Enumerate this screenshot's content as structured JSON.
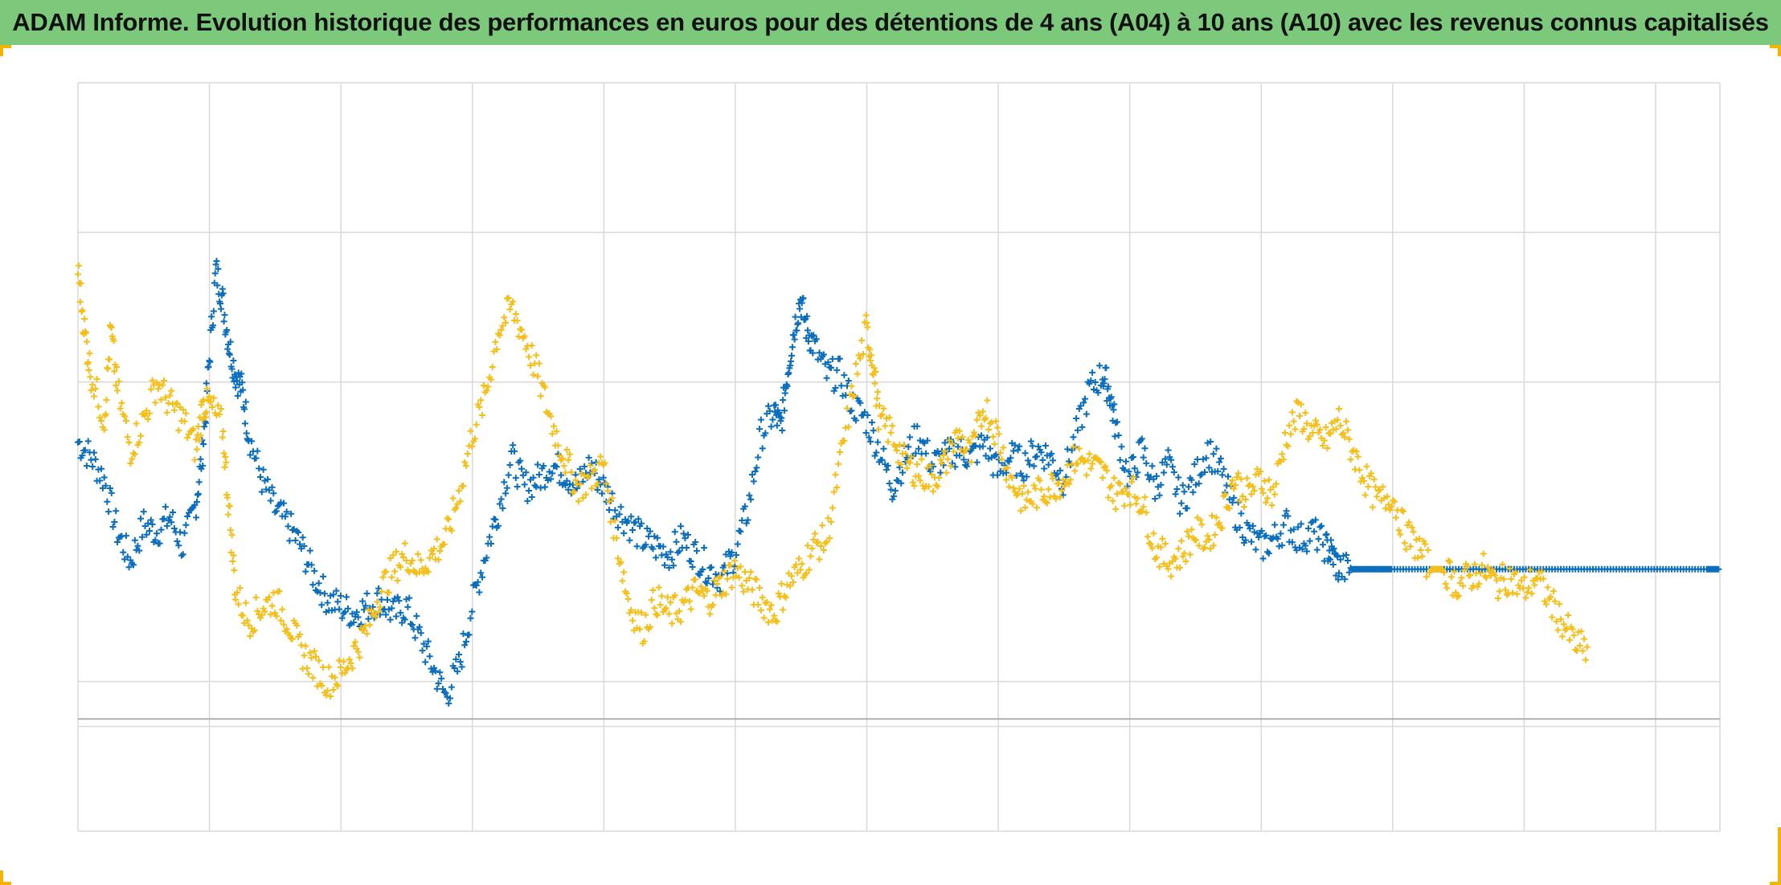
{
  "title": "ADAM Informe. Evolution historique des performances en euros pour des détentions de 4 ans (A04) à 10 ans (A10) avec les revenus connus capitalisés",
  "colors": {
    "title_bar": "#7dc97b",
    "series_blue": "#0a6ebd",
    "series_yellow": "#f5be18",
    "grid": "#d9d9d9",
    "zero_line": "#b0b0b0",
    "corner_accent": "#f2b400"
  },
  "chart_data": {
    "type": "scatter",
    "marker": "plus",
    "title": "ADAM Informe. Evolution historique des performances en euros pour des détentions de 4 ans (A04) à 10 ans (A10) avec les revenus connus capitalisés",
    "xlabel": "",
    "ylabel": "",
    "x_range": [
      0,
      12.5
    ],
    "y_range": [
      -0.75,
      4.25
    ],
    "x_gridlines": 13,
    "y_gridlines": [
      -0.75,
      -0.05,
      0.25,
      2.25,
      3.25,
      4.25
    ],
    "zero_line": 0,
    "tick_labels_visible": false,
    "legend": "none",
    "grid": true,
    "series": [
      {
        "color": "#0a6ebd",
        "points": [
          [
            0.0,
            1.85
          ],
          [
            0.1,
            1.75
          ],
          [
            0.2,
            1.6
          ],
          [
            0.3,
            1.25
          ],
          [
            0.4,
            1.05
          ],
          [
            0.5,
            1.3
          ],
          [
            0.6,
            1.25
          ],
          [
            0.7,
            1.35
          ],
          [
            0.8,
            1.15
          ],
          [
            0.9,
            1.45
          ],
          [
            0.95,
            1.8
          ],
          [
            1.0,
            2.4
          ],
          [
            1.05,
            3.0
          ],
          [
            1.1,
            2.8
          ],
          [
            1.15,
            2.5
          ],
          [
            1.2,
            2.3
          ],
          [
            1.25,
            2.2
          ],
          [
            1.3,
            1.9
          ],
          [
            1.4,
            1.6
          ],
          [
            1.5,
            1.4
          ],
          [
            1.6,
            1.3
          ],
          [
            1.7,
            1.15
          ],
          [
            1.8,
            0.95
          ],
          [
            1.9,
            0.8
          ],
          [
            2.0,
            0.75
          ],
          [
            2.1,
            0.7
          ],
          [
            2.2,
            0.75
          ],
          [
            2.3,
            0.8
          ],
          [
            2.4,
            0.7
          ],
          [
            2.5,
            0.75
          ],
          [
            2.6,
            0.55
          ],
          [
            2.7,
            0.35
          ],
          [
            2.8,
            0.15
          ],
          [
            2.9,
            0.35
          ],
          [
            3.0,
            0.75
          ],
          [
            3.1,
            1.1
          ],
          [
            3.2,
            1.4
          ],
          [
            3.3,
            1.75
          ],
          [
            3.4,
            1.55
          ],
          [
            3.5,
            1.6
          ],
          [
            3.6,
            1.7
          ],
          [
            3.7,
            1.65
          ],
          [
            3.8,
            1.55
          ],
          [
            3.9,
            1.7
          ],
          [
            4.0,
            1.55
          ],
          [
            4.1,
            1.4
          ],
          [
            4.2,
            1.3
          ],
          [
            4.3,
            1.2
          ],
          [
            4.4,
            1.15
          ],
          [
            4.5,
            1.1
          ],
          [
            4.6,
            1.2
          ],
          [
            4.7,
            1.1
          ],
          [
            4.8,
            1.0
          ],
          [
            4.9,
            0.95
          ],
          [
            5.0,
            1.1
          ],
          [
            5.1,
            1.4
          ],
          [
            5.2,
            1.9
          ],
          [
            5.3,
            2.05
          ],
          [
            5.35,
            1.95
          ],
          [
            5.4,
            2.3
          ],
          [
            5.45,
            2.6
          ],
          [
            5.5,
            2.8
          ],
          [
            5.55,
            2.6
          ],
          [
            5.6,
            2.5
          ],
          [
            5.7,
            2.3
          ],
          [
            5.8,
            2.3
          ],
          [
            5.9,
            2.1
          ],
          [
            6.0,
            2.0
          ],
          [
            6.1,
            1.8
          ],
          [
            6.2,
            1.55
          ],
          [
            6.3,
            1.75
          ],
          [
            6.4,
            1.9
          ],
          [
            6.5,
            1.7
          ],
          [
            6.6,
            1.75
          ],
          [
            6.7,
            1.8
          ],
          [
            6.8,
            1.75
          ],
          [
            6.9,
            1.85
          ],
          [
            7.0,
            1.65
          ],
          [
            7.1,
            1.75
          ],
          [
            7.2,
            1.7
          ],
          [
            7.3,
            1.8
          ],
          [
            7.4,
            1.75
          ],
          [
            7.5,
            1.6
          ],
          [
            7.6,
            1.9
          ],
          [
            7.7,
            2.2
          ],
          [
            7.8,
            2.3
          ],
          [
            7.85,
            2.2
          ],
          [
            7.9,
            1.95
          ],
          [
            8.0,
            1.6
          ],
          [
            8.1,
            1.8
          ],
          [
            8.2,
            1.55
          ],
          [
            8.3,
            1.7
          ],
          [
            8.4,
            1.45
          ],
          [
            8.5,
            1.6
          ],
          [
            8.6,
            1.8
          ],
          [
            8.7,
            1.65
          ],
          [
            8.8,
            1.4
          ],
          [
            8.9,
            1.25
          ],
          [
            9.0,
            1.15
          ],
          [
            9.1,
            1.2
          ],
          [
            9.2,
            1.3
          ],
          [
            9.3,
            1.2
          ],
          [
            9.4,
            1.25
          ],
          [
            9.5,
            1.15
          ],
          [
            9.55,
            1.1
          ],
          [
            9.6,
            1.0
          ],
          [
            9.7,
            1.0
          ],
          [
            9.8,
            1.0
          ],
          [
            9.9,
            1.0
          ],
          [
            10.0,
            1.0
          ],
          [
            10.2,
            1.0
          ],
          [
            10.4,
            1.0
          ],
          [
            10.6,
            1.0
          ],
          [
            10.8,
            1.0
          ],
          [
            11.0,
            1.0
          ],
          [
            11.2,
            1.0
          ],
          [
            11.4,
            1.0
          ],
          [
            11.6,
            1.0
          ],
          [
            11.8,
            1.0
          ],
          [
            12.0,
            1.0
          ],
          [
            12.2,
            1.0
          ],
          [
            12.4,
            1.0
          ],
          [
            12.5,
            1.0
          ]
        ]
      },
      {
        "color": "#f5be18",
        "points": [
          [
            0.0,
            3.0
          ],
          [
            0.05,
            2.6
          ],
          [
            0.1,
            2.3
          ],
          [
            0.2,
            2.0
          ],
          [
            0.25,
            2.6
          ],
          [
            0.3,
            2.2
          ],
          [
            0.4,
            1.8
          ],
          [
            0.5,
            2.0
          ],
          [
            0.6,
            2.25
          ],
          [
            0.7,
            2.1
          ],
          [
            0.8,
            2.0
          ],
          [
            0.9,
            1.8
          ],
          [
            0.95,
            2.1
          ],
          [
            1.0,
            2.1
          ],
          [
            1.1,
            1.95
          ],
          [
            1.15,
            1.4
          ],
          [
            1.2,
            0.85
          ],
          [
            1.3,
            0.65
          ],
          [
            1.4,
            0.75
          ],
          [
            1.5,
            0.8
          ],
          [
            1.6,
            0.65
          ],
          [
            1.7,
            0.45
          ],
          [
            1.8,
            0.35
          ],
          [
            1.9,
            0.25
          ],
          [
            2.0,
            0.3
          ],
          [
            2.1,
            0.45
          ],
          [
            2.2,
            0.6
          ],
          [
            2.3,
            0.85
          ],
          [
            2.4,
            1.0
          ],
          [
            2.5,
            1.1
          ],
          [
            2.6,
            1.0
          ],
          [
            2.7,
            1.1
          ],
          [
            2.8,
            1.2
          ],
          [
            2.9,
            1.5
          ],
          [
            3.0,
            1.9
          ],
          [
            3.1,
            2.15
          ],
          [
            3.2,
            2.6
          ],
          [
            3.3,
            2.75
          ],
          [
            3.4,
            2.55
          ],
          [
            3.5,
            2.3
          ],
          [
            3.6,
            2.0
          ],
          [
            3.7,
            1.75
          ],
          [
            3.8,
            1.55
          ],
          [
            3.9,
            1.6
          ],
          [
            4.0,
            1.7
          ],
          [
            4.1,
            1.2
          ],
          [
            4.2,
            0.75
          ],
          [
            4.3,
            0.6
          ],
          [
            4.4,
            0.8
          ],
          [
            4.5,
            0.7
          ],
          [
            4.6,
            0.75
          ],
          [
            4.7,
            0.85
          ],
          [
            4.8,
            0.8
          ],
          [
            4.9,
            0.9
          ],
          [
            5.0,
            1.0
          ],
          [
            5.1,
            0.9
          ],
          [
            5.2,
            0.8
          ],
          [
            5.3,
            0.7
          ],
          [
            5.4,
            0.9
          ],
          [
            5.5,
            1.0
          ],
          [
            5.6,
            1.15
          ],
          [
            5.7,
            1.2
          ],
          [
            5.8,
            1.7
          ],
          [
            5.9,
            2.2
          ],
          [
            6.0,
            2.6
          ],
          [
            6.05,
            2.4
          ],
          [
            6.1,
            2.0
          ],
          [
            6.2,
            1.9
          ],
          [
            6.3,
            1.7
          ],
          [
            6.4,
            1.65
          ],
          [
            6.5,
            1.6
          ],
          [
            6.6,
            1.7
          ],
          [
            6.7,
            1.9
          ],
          [
            6.8,
            1.75
          ],
          [
            6.9,
            2.1
          ],
          [
            7.0,
            1.9
          ],
          [
            7.1,
            1.6
          ],
          [
            7.2,
            1.45
          ],
          [
            7.3,
            1.5
          ],
          [
            7.4,
            1.55
          ],
          [
            7.5,
            1.6
          ],
          [
            7.6,
            1.75
          ],
          [
            7.7,
            1.7
          ],
          [
            7.8,
            1.65
          ],
          [
            7.9,
            1.5
          ],
          [
            8.0,
            1.55
          ],
          [
            8.1,
            1.45
          ],
          [
            8.2,
            1.15
          ],
          [
            8.3,
            1.05
          ],
          [
            8.4,
            1.1
          ],
          [
            8.5,
            1.25
          ],
          [
            8.6,
            1.2
          ],
          [
            8.7,
            1.35
          ],
          [
            8.8,
            1.6
          ],
          [
            8.9,
            1.5
          ],
          [
            9.0,
            1.6
          ],
          [
            9.1,
            1.5
          ],
          [
            9.2,
            1.9
          ],
          [
            9.3,
            2.05
          ],
          [
            9.4,
            1.9
          ],
          [
            9.5,
            1.85
          ],
          [
            9.6,
            2.0
          ],
          [
            9.7,
            1.8
          ],
          [
            9.8,
            1.6
          ],
          [
            9.9,
            1.45
          ],
          [
            10.0,
            1.5
          ],
          [
            10.1,
            1.25
          ],
          [
            10.2,
            1.15
          ],
          [
            10.3,
            1.0
          ],
          [
            10.4,
            1.0
          ],
          [
            10.5,
            0.9
          ],
          [
            10.6,
            0.95
          ],
          [
            10.7,
            1.0
          ],
          [
            10.8,
            0.9
          ],
          [
            10.9,
            0.95
          ],
          [
            11.0,
            0.85
          ],
          [
            11.1,
            0.95
          ],
          [
            11.2,
            0.8
          ],
          [
            11.3,
            0.65
          ],
          [
            11.4,
            0.5
          ],
          [
            11.5,
            0.45
          ]
        ]
      }
    ]
  }
}
